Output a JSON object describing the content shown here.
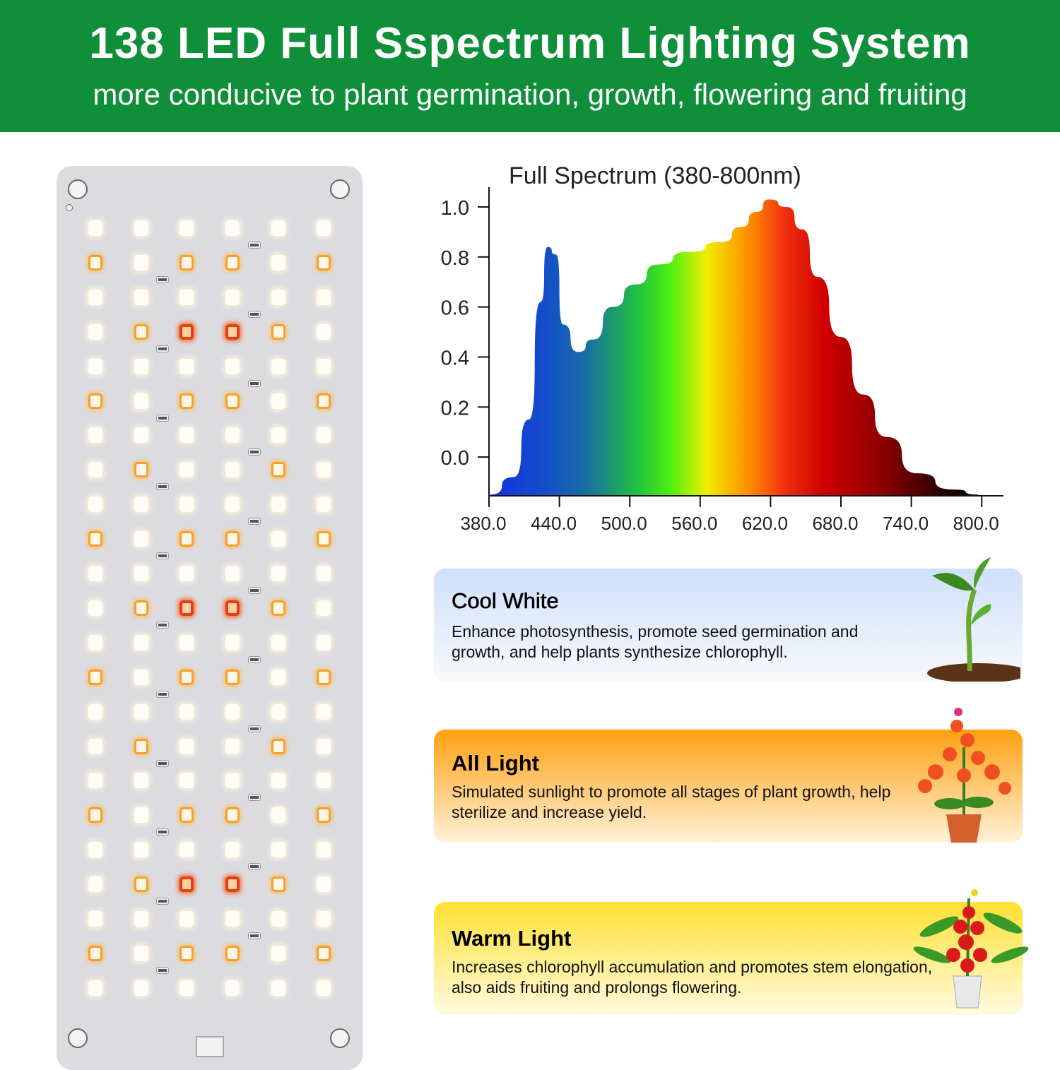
{
  "banner": {
    "title": "138 LED Full Sspectrum Lighting System",
    "subtitle": "more conducive to plant germination, growth, flowering and fruiting",
    "color": "#0f8f3a"
  },
  "board": {
    "led_count": 138,
    "led_rows": [
      "wwwwww",
      "owoowo",
      "wwwwww",
      "worrow",
      "wwwwww",
      "owoowo",
      "wwwwww",
      "wowwow",
      "wwwwww",
      "owoowo",
      "wwwwww",
      "worrow",
      "wwwwww",
      "owoowo",
      "wwwwww",
      "wowwow",
      "wwwwww",
      "owoowo",
      "wwwwww",
      "worrow",
      "wwwwww",
      "owoowo",
      "wwwwww"
    ]
  },
  "chart_data": {
    "type": "area",
    "title": "Full Spectrum (380-800nm)",
    "xlabel": "",
    "ylabel": "",
    "xticks": [
      "380.0",
      "440.0",
      "500.0",
      "560.0",
      "620.0",
      "680.0",
      "740.0",
      "800.0"
    ],
    "yticks": [
      "1.0",
      "0.8",
      "0.6",
      "0.4",
      "0.2",
      "0.0"
    ],
    "xlim": [
      380,
      815
    ],
    "ylim": [
      -0.155,
      1.0
    ],
    "x": [
      381,
      401,
      414,
      424,
      430,
      437,
      443,
      456,
      469,
      485,
      505,
      524,
      550,
      579,
      595,
      608,
      619,
      634,
      647,
      660,
      680,
      699,
      719,
      745,
      776,
      797
    ],
    "y": [
      -0.15,
      -0.08,
      0.15,
      0.62,
      0.84,
      0.81,
      0.53,
      0.42,
      0.47,
      0.6,
      0.69,
      0.77,
      0.82,
      0.86,
      0.92,
      0.98,
      1.03,
      1.0,
      0.91,
      0.72,
      0.48,
      0.25,
      0.08,
      -0.065,
      -0.13,
      -0.15
    ],
    "grid": false
  },
  "cards": [
    {
      "title": "Cool White",
      "text": "Enhance photosynthesis, promote seed germination and growth, and help plants synthesize chlorophyll.",
      "icon": "seedling-icon"
    },
    {
      "title": "All Light",
      "text": "Simulated sunlight to promote all stages of plant growth, help sterilize and increase yield.",
      "icon": "flower-pot-icon"
    },
    {
      "title": "Warm Light",
      "text": "Increases chlorophyll accumulation and promotes stem elongation, also aids fruiting and prolongs flowering.",
      "icon": "tomato-plant-icon"
    }
  ]
}
